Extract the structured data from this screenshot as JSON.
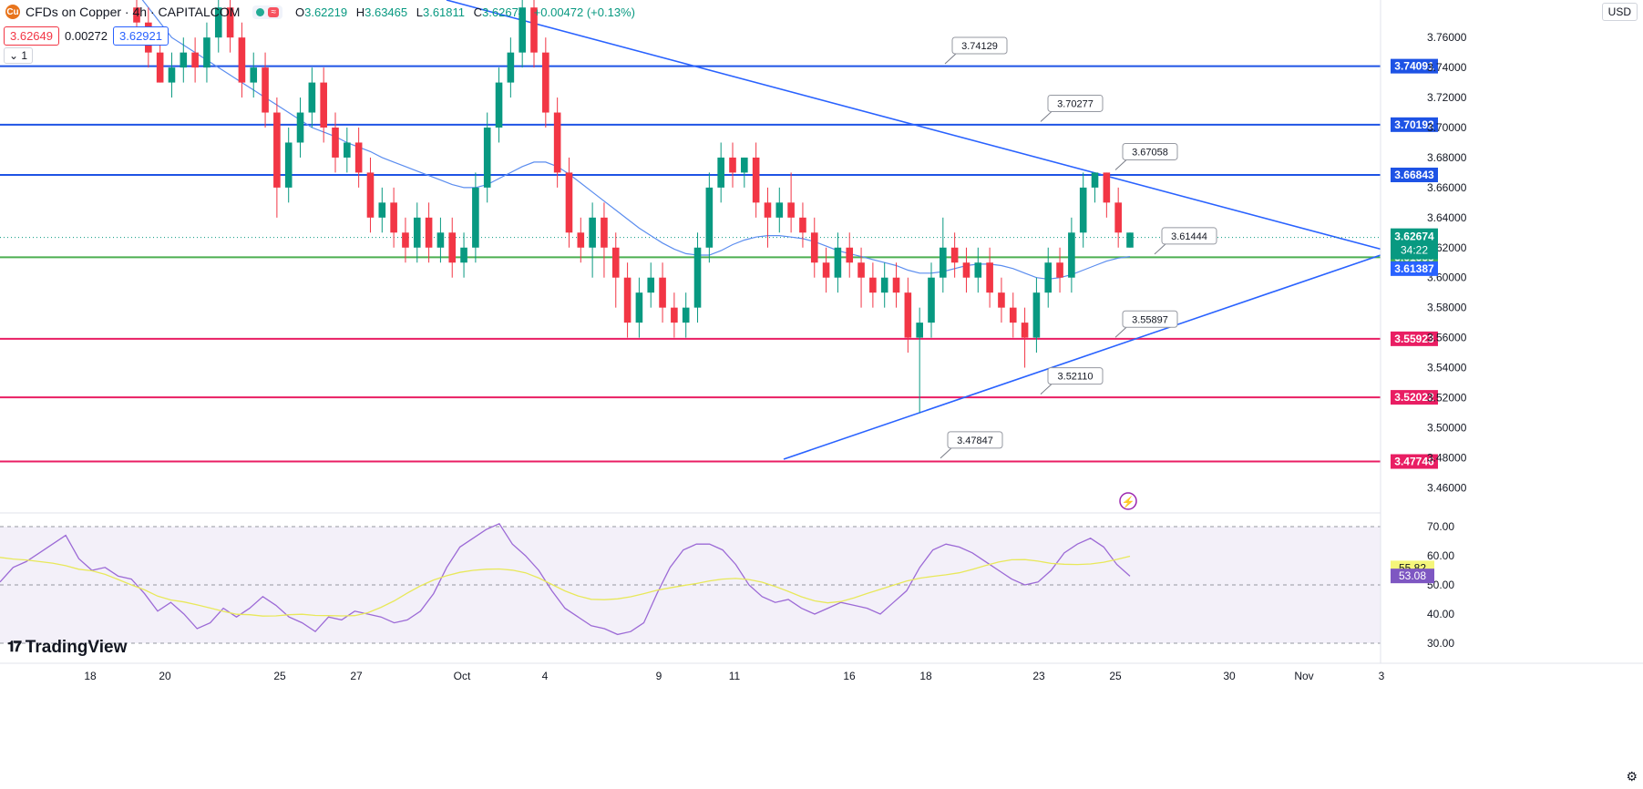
{
  "header": {
    "title": "CFDs on Copper · 4h · CAPITALCOM",
    "logo_icon": "copper-symbol-icon",
    "ohlc": [
      {
        "k": "O",
        "v": "3.62219"
      },
      {
        "k": "H",
        "v": "3.63465"
      },
      {
        "k": "L",
        "v": "3.61811"
      },
      {
        "k": "C",
        "v": "3.62674"
      },
      {
        "k": "",
        "v": "+0.00472 (+0.13%)"
      }
    ],
    "sell_price": "3.62649",
    "spread": "0.00272",
    "buy_price": "3.62921",
    "layout_label": "1",
    "currency": "USD"
  },
  "branding": {
    "name": "TradingView"
  },
  "chart_data": {
    "type": "candlestick",
    "title": "CFDs on Copper · 4h · CAPITALCOM",
    "y_range": [
      3.445,
      3.785
    ],
    "y_ticks": [
      "3.76000",
      "3.74000",
      "3.72000",
      "3.70000",
      "3.68000",
      "3.66000",
      "3.64000",
      "3.62000",
      "3.60000",
      "3.58000",
      "3.56000",
      "3.54000",
      "3.52000",
      "3.50000",
      "3.48000",
      "3.46000"
    ],
    "x_ticks": [
      "18",
      "20",
      "25",
      "27",
      "Oct",
      "4",
      "9",
      "11",
      "16",
      "18",
      "23",
      "25",
      "30",
      "Nov",
      "3"
    ],
    "candles": [
      [
        3.78,
        3.77,
        3.79,
        3.76
      ],
      [
        3.77,
        3.75,
        3.78,
        3.74
      ],
      [
        3.75,
        3.73,
        3.76,
        3.73
      ],
      [
        3.73,
        3.74,
        3.75,
        3.72
      ],
      [
        3.74,
        3.75,
        3.76,
        3.73
      ],
      [
        3.75,
        3.74,
        3.76,
        3.73
      ],
      [
        3.74,
        3.76,
        3.77,
        3.73
      ],
      [
        3.76,
        3.78,
        3.79,
        3.75
      ],
      [
        3.78,
        3.76,
        3.79,
        3.75
      ],
      [
        3.76,
        3.73,
        3.77,
        3.72
      ],
      [
        3.73,
        3.74,
        3.75,
        3.72
      ],
      [
        3.74,
        3.71,
        3.75,
        3.7
      ],
      [
        3.71,
        3.66,
        3.72,
        3.64
      ],
      [
        3.66,
        3.69,
        3.7,
        3.65
      ],
      [
        3.69,
        3.71,
        3.72,
        3.68
      ],
      [
        3.71,
        3.73,
        3.74,
        3.7
      ],
      [
        3.73,
        3.7,
        3.74,
        3.69
      ],
      [
        3.7,
        3.68,
        3.71,
        3.67
      ],
      [
        3.68,
        3.69,
        3.7,
        3.67
      ],
      [
        3.69,
        3.67,
        3.7,
        3.66
      ],
      [
        3.67,
        3.64,
        3.68,
        3.63
      ],
      [
        3.64,
        3.65,
        3.66,
        3.63
      ],
      [
        3.65,
        3.63,
        3.66,
        3.62
      ],
      [
        3.63,
        3.62,
        3.64,
        3.61
      ],
      [
        3.62,
        3.64,
        3.65,
        3.61
      ],
      [
        3.64,
        3.62,
        3.65,
        3.61
      ],
      [
        3.62,
        3.63,
        3.64,
        3.61
      ],
      [
        3.63,
        3.61,
        3.64,
        3.6
      ],
      [
        3.61,
        3.62,
        3.63,
        3.6
      ],
      [
        3.62,
        3.66,
        3.67,
        3.61
      ],
      [
        3.66,
        3.7,
        3.71,
        3.65
      ],
      [
        3.7,
        3.73,
        3.74,
        3.69
      ],
      [
        3.73,
        3.75,
        3.76,
        3.72
      ],
      [
        3.75,
        3.78,
        3.79,
        3.74
      ],
      [
        3.78,
        3.75,
        3.79,
        3.74
      ],
      [
        3.75,
        3.71,
        3.76,
        3.7
      ],
      [
        3.71,
        3.67,
        3.72,
        3.66
      ],
      [
        3.67,
        3.63,
        3.68,
        3.62
      ],
      [
        3.63,
        3.62,
        3.64,
        3.61
      ],
      [
        3.62,
        3.64,
        3.65,
        3.6
      ],
      [
        3.64,
        3.62,
        3.65,
        3.6
      ],
      [
        3.62,
        3.6,
        3.63,
        3.58
      ],
      [
        3.6,
        3.57,
        3.61,
        3.56
      ],
      [
        3.57,
        3.59,
        3.6,
        3.56
      ],
      [
        3.59,
        3.6,
        3.61,
        3.58
      ],
      [
        3.6,
        3.58,
        3.61,
        3.57
      ],
      [
        3.58,
        3.57,
        3.59,
        3.56
      ],
      [
        3.57,
        3.58,
        3.59,
        3.56
      ],
      [
        3.58,
        3.62,
        3.63,
        3.57
      ],
      [
        3.62,
        3.66,
        3.67,
        3.61
      ],
      [
        3.66,
        3.68,
        3.69,
        3.65
      ],
      [
        3.68,
        3.67,
        3.69,
        3.66
      ],
      [
        3.67,
        3.68,
        3.68,
        3.66
      ],
      [
        3.68,
        3.65,
        3.69,
        3.64
      ],
      [
        3.65,
        3.64,
        3.66,
        3.62
      ],
      [
        3.64,
        3.65,
        3.66,
        3.63
      ],
      [
        3.65,
        3.64,
        3.67,
        3.63
      ],
      [
        3.64,
        3.63,
        3.65,
        3.62
      ],
      [
        3.63,
        3.61,
        3.64,
        3.6
      ],
      [
        3.61,
        3.6,
        3.62,
        3.59
      ],
      [
        3.6,
        3.62,
        3.63,
        3.59
      ],
      [
        3.62,
        3.61,
        3.63,
        3.6
      ],
      [
        3.61,
        3.6,
        3.62,
        3.58
      ],
      [
        3.6,
        3.59,
        3.61,
        3.58
      ],
      [
        3.59,
        3.6,
        3.61,
        3.58
      ],
      [
        3.6,
        3.59,
        3.61,
        3.58
      ],
      [
        3.59,
        3.56,
        3.6,
        3.55
      ],
      [
        3.56,
        3.57,
        3.58,
        3.51
      ],
      [
        3.57,
        3.6,
        3.61,
        3.56
      ],
      [
        3.6,
        3.62,
        3.64,
        3.59
      ],
      [
        3.62,
        3.61,
        3.63,
        3.6
      ],
      [
        3.61,
        3.6,
        3.62,
        3.59
      ],
      [
        3.6,
        3.61,
        3.62,
        3.59
      ],
      [
        3.61,
        3.59,
        3.62,
        3.58
      ],
      [
        3.59,
        3.58,
        3.6,
        3.57
      ],
      [
        3.58,
        3.57,
        3.59,
        3.56
      ],
      [
        3.57,
        3.56,
        3.58,
        3.54
      ],
      [
        3.56,
        3.59,
        3.6,
        3.55
      ],
      [
        3.59,
        3.61,
        3.62,
        3.58
      ],
      [
        3.61,
        3.6,
        3.62,
        3.59
      ],
      [
        3.6,
        3.63,
        3.64,
        3.59
      ],
      [
        3.63,
        3.66,
        3.67,
        3.62
      ],
      [
        3.66,
        3.67,
        3.67,
        3.65
      ],
      [
        3.67,
        3.65,
        3.67,
        3.64
      ],
      [
        3.65,
        3.63,
        3.66,
        3.62
      ],
      [
        3.62,
        3.63,
        3.63,
        3.62
      ]
    ],
    "moving_average": [
      3.79,
      3.78,
      3.77,
      3.76,
      3.755,
      3.75,
      3.745,
      3.74,
      3.735,
      3.73,
      3.725,
      3.72,
      3.715,
      3.71,
      3.705,
      3.7,
      3.697,
      3.694,
      3.69,
      3.687,
      3.684,
      3.68,
      3.677,
      3.674,
      3.671,
      3.668,
      3.665,
      3.662,
      3.66,
      3.66,
      3.662,
      3.666,
      3.67,
      3.674,
      3.677,
      3.677,
      3.674,
      3.669,
      3.663,
      3.657,
      3.651,
      3.645,
      3.639,
      3.633,
      3.628,
      3.623,
      3.619,
      3.616,
      3.615,
      3.615,
      3.618,
      3.622,
      3.625,
      3.627,
      3.628,
      3.628,
      3.627,
      3.626,
      3.624,
      3.621,
      3.618,
      3.616,
      3.614,
      3.612,
      3.61,
      3.608,
      3.605,
      3.603,
      3.603,
      3.604,
      3.606,
      3.608,
      3.609,
      3.609,
      3.608,
      3.606,
      3.603,
      3.6,
      3.599,
      3.6,
      3.602,
      3.605,
      3.608,
      3.611,
      3.613,
      3.614
    ],
    "horizontal_levels": [
      {
        "value": 3.74091,
        "label": "3.74091",
        "color": "#1e53e5"
      },
      {
        "value": 3.70192,
        "label": "3.70192",
        "color": "#1e53e5"
      },
      {
        "value": 3.66843,
        "label": "3.66843",
        "color": "#1e53e5"
      },
      {
        "value": 3.61355,
        "label": "3.61355",
        "color": "#4caf50"
      },
      {
        "value": 3.55923,
        "label": "3.55923",
        "color": "#e91e63"
      },
      {
        "value": 3.52022,
        "label": "3.52022",
        "color": "#e91e63"
      },
      {
        "value": 3.47746,
        "label": "3.47746",
        "color": "#e91e63"
      }
    ],
    "callouts": [
      "3.74129",
      "3.70277",
      "3.67058",
      "3.61444",
      "3.55897",
      "3.52110",
      "3.47847"
    ],
    "price_scale_labels": [
      {
        "text": "3.62674",
        "color": "#089981"
      },
      {
        "text": "34:22",
        "color": "#089981"
      },
      {
        "text": "3.61387",
        "color": "#2962ff"
      }
    ],
    "rsi": {
      "range": [
        30,
        70
      ],
      "ticks": [
        "70.00",
        "60.00",
        "50.00",
        "40.00",
        "30.00"
      ],
      "value": "53.08",
      "signal": "55.82",
      "values": [
        51,
        56,
        58,
        61,
        64,
        67,
        59,
        55,
        56,
        53,
        52,
        47,
        41,
        44,
        40,
        35,
        37,
        42,
        39,
        42,
        46,
        43,
        39,
        37,
        34,
        39,
        38,
        41,
        40,
        39,
        37,
        38,
        41,
        47,
        56,
        63,
        66,
        69,
        71,
        64,
        60,
        55,
        48,
        42,
        39,
        36,
        35,
        33,
        34,
        37,
        47,
        56,
        62,
        64,
        64,
        62,
        57,
        50,
        46,
        44,
        45,
        42,
        40,
        42,
        44,
        43,
        42,
        40,
        44,
        48,
        56,
        62,
        64,
        63,
        61,
        58,
        55,
        52,
        50,
        51,
        55,
        61,
        64,
        66,
        63,
        57,
        53
      ]
    }
  }
}
